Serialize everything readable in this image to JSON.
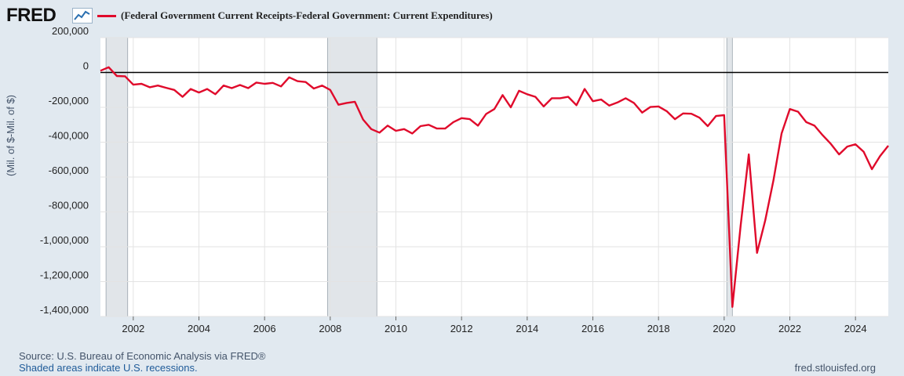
{
  "header": {
    "logo_text": "FRED",
    "legend_label": "(Federal Government Current Receipts-Federal Government: Current Expenditures)",
    "series_color": "#e00a2b"
  },
  "footer": {
    "source": "Source: U.S. Bureau of Economic Analysis via FRED®",
    "recessions_note": "Shaded areas indicate U.S. recessions.",
    "url": "fred.stlouisfed.org"
  },
  "chart_data": {
    "type": "line",
    "title": "(Federal Government Current Receipts-Federal Government: Current Expenditures)",
    "xlabel": "",
    "ylabel": "(Mil. of $-Mil. of $)",
    "xlim": [
      2001.0,
      2025.0
    ],
    "ylim": [
      -1400000,
      200000
    ],
    "x_ticks": [
      2002,
      2004,
      2006,
      2008,
      2010,
      2012,
      2014,
      2016,
      2018,
      2020,
      2022,
      2024
    ],
    "y_ticks": [
      200000,
      0,
      -200000,
      -400000,
      -600000,
      -800000,
      -1000000,
      -1200000,
      -1400000
    ],
    "y_tick_labels": [
      "200,000",
      "0",
      "-200,000",
      "-400,000",
      "-600,000",
      "-800,000",
      "-1,000,000",
      "-1,200,000",
      "-1,400,000"
    ],
    "recessions": [
      [
        2001.17,
        2001.83
      ],
      [
        2007.92,
        2009.42
      ],
      [
        2020.08,
        2020.25
      ]
    ],
    "series": [
      {
        "name": "(Federal Government Current Receipts-Federal Government: Current Expenditures)",
        "x": [
          2001.0,
          2001.25,
          2001.5,
          2001.75,
          2002.0,
          2002.25,
          2002.5,
          2002.75,
          2003.0,
          2003.25,
          2003.5,
          2003.75,
          2004.0,
          2004.25,
          2004.5,
          2004.75,
          2005.0,
          2005.25,
          2005.5,
          2005.75,
          2006.0,
          2006.25,
          2006.5,
          2006.75,
          2007.0,
          2007.25,
          2007.5,
          2007.75,
          2008.0,
          2008.25,
          2008.5,
          2008.75,
          2009.0,
          2009.25,
          2009.5,
          2009.75,
          2010.0,
          2010.25,
          2010.5,
          2010.75,
          2011.0,
          2011.25,
          2011.5,
          2011.75,
          2012.0,
          2012.25,
          2012.5,
          2012.75,
          2013.0,
          2013.25,
          2013.5,
          2013.75,
          2014.0,
          2014.25,
          2014.5,
          2014.75,
          2015.0,
          2015.25,
          2015.5,
          2015.75,
          2016.0,
          2016.25,
          2016.5,
          2016.75,
          2017.0,
          2017.25,
          2017.5,
          2017.75,
          2018.0,
          2018.25,
          2018.5,
          2018.75,
          2019.0,
          2019.25,
          2019.5,
          2019.75,
          2020.0,
          2020.25,
          2020.5,
          2020.75,
          2021.0,
          2021.25,
          2021.5,
          2021.75,
          2022.0,
          2022.25,
          2022.5,
          2022.75,
          2023.0,
          2023.25,
          2023.5,
          2023.75,
          2024.0,
          2024.25,
          2024.5,
          2024.75,
          2025.0
        ],
        "values": [
          10000,
          30000,
          -20000,
          -22000,
          -70000,
          -65000,
          -85000,
          -75000,
          -88000,
          -100000,
          -140000,
          -95000,
          -115000,
          -95000,
          -125000,
          -75000,
          -90000,
          -72000,
          -90000,
          -58000,
          -65000,
          -60000,
          -80000,
          -28000,
          -50000,
          -55000,
          -92000,
          -75000,
          -100000,
          -185000,
          -175000,
          -168000,
          -270000,
          -325000,
          -345000,
          -305000,
          -335000,
          -325000,
          -350000,
          -308000,
          -300000,
          -322000,
          -322000,
          -285000,
          -262000,
          -268000,
          -305000,
          -238000,
          -210000,
          -130000,
          -200000,
          -105000,
          -125000,
          -140000,
          -195000,
          -148000,
          -148000,
          -140000,
          -188000,
          -95000,
          -165000,
          -155000,
          -190000,
          -172000,
          -148000,
          -175000,
          -230000,
          -198000,
          -195000,
          -222000,
          -268000,
          -235000,
          -237000,
          -260000,
          -308000,
          -250000,
          -245000,
          -1345000,
          -880000,
          -470000,
          -1035000,
          -850000,
          -620000,
          -350000,
          -210000,
          -225000,
          -285000,
          -305000,
          -360000,
          -410000,
          -470000,
          -425000,
          -412000,
          -455000,
          -555000,
          -480000,
          -420000
        ]
      }
    ]
  }
}
